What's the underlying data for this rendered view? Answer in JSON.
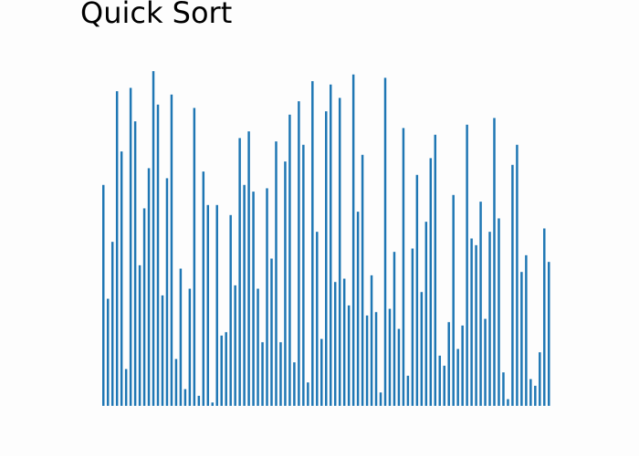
{
  "chart_data": {
    "type": "bar",
    "title": "Quick Sort",
    "xlabel": "",
    "ylabel": "",
    "axes_visible": false,
    "grid": false,
    "bar_color": "#1f77b4",
    "background_color": "#fdfdfd",
    "ylim": [
      0,
      1
    ],
    "values": [
      0.66,
      0.32,
      0.49,
      0.94,
      0.76,
      0.11,
      0.95,
      0.85,
      0.42,
      0.59,
      0.71,
      1.0,
      0.9,
      0.33,
      0.68,
      0.93,
      0.14,
      0.41,
      0.05,
      0.35,
      0.89,
      0.03,
      0.7,
      0.6,
      0.01,
      0.6,
      0.21,
      0.22,
      0.57,
      0.36,
      0.8,
      0.66,
      0.82,
      0.64,
      0.35,
      0.19,
      0.65,
      0.44,
      0.79,
      0.19,
      0.73,
      0.87,
      0.13,
      0.91,
      0.78,
      0.07,
      0.97,
      0.52,
      0.2,
      0.88,
      0.96,
      0.37,
      0.92,
      0.38,
      0.3,
      0.99,
      0.58,
      0.75,
      0.27,
      0.39,
      0.28,
      0.04,
      0.98,
      0.29,
      0.46,
      0.23,
      0.83,
      0.09,
      0.47,
      0.69,
      0.34,
      0.55,
      0.74,
      0.81,
      0.15,
      0.12,
      0.25,
      0.63,
      0.17,
      0.24,
      0.84,
      0.5,
      0.48,
      0.61,
      0.26,
      0.52,
      0.86,
      0.56,
      0.1,
      0.02,
      0.72,
      0.78,
      0.4,
      0.45,
      0.08,
      0.06,
      0.16,
      0.53,
      0.43
    ]
  }
}
